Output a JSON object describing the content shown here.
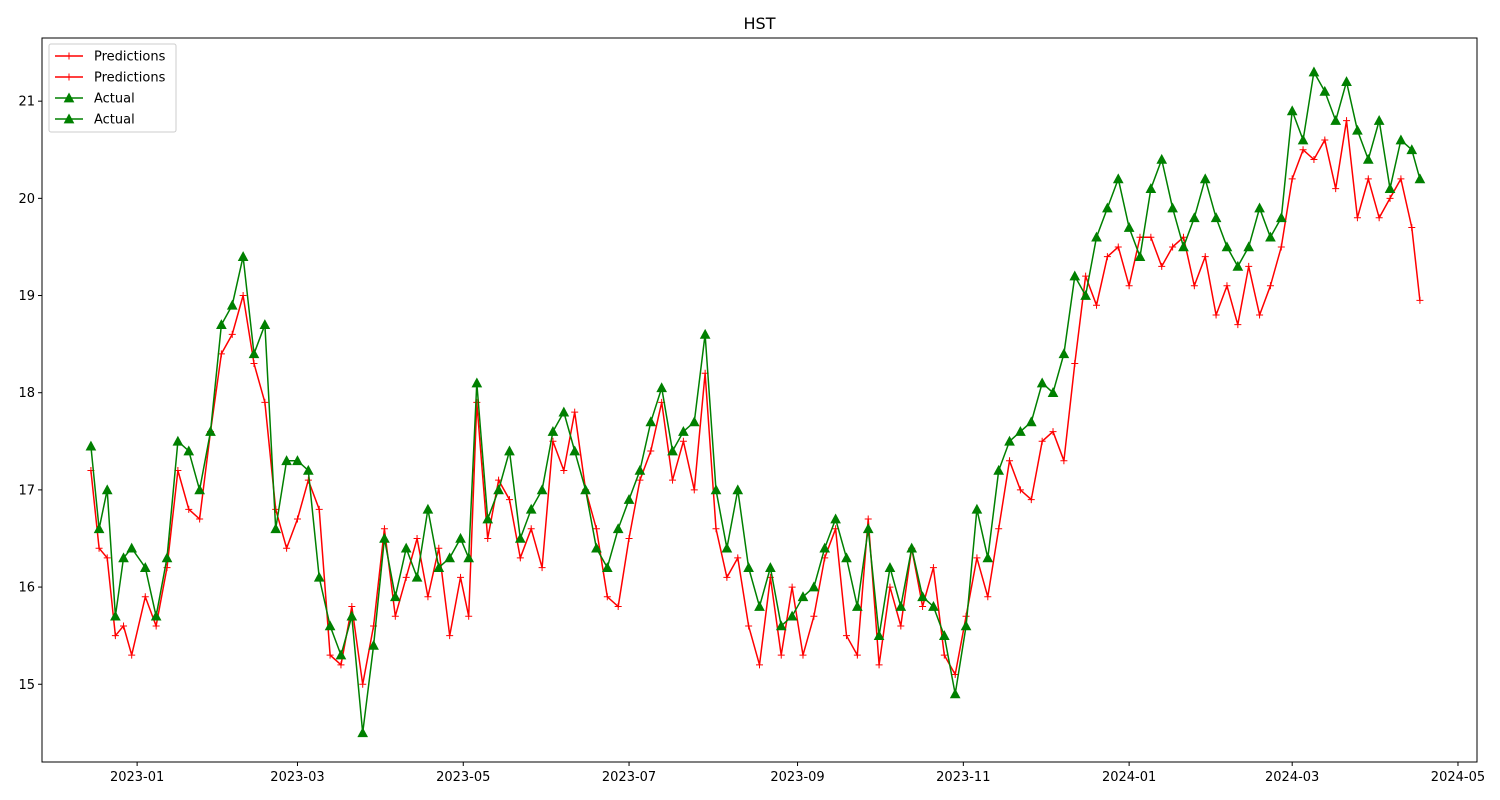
{
  "chart_data": {
    "type": "line",
    "title": "HST",
    "xlabel": "",
    "ylabel": "",
    "x_axis": {
      "kind": "date",
      "range": [
        "2022-11-27",
        "2024-05-08"
      ],
      "ticks": [
        "2023-01-01",
        "2023-03-01",
        "2023-05-01",
        "2023-07-01",
        "2023-09-01",
        "2023-11-01",
        "2024-01-01",
        "2024-03-01",
        "2024-05-01"
      ],
      "tick_labels": [
        "2023-01",
        "2023-03",
        "2023-05",
        "2023-07",
        "2023-09",
        "2023-11",
        "2024-01",
        "2024-03",
        "2024-05"
      ]
    },
    "y_axis": {
      "range": [
        14.2,
        21.65
      ],
      "ticks": [
        15,
        16,
        17,
        18,
        19,
        20,
        21
      ],
      "tick_labels": [
        "15",
        "16",
        "17",
        "18",
        "19",
        "20",
        "21"
      ]
    },
    "grid": false,
    "legend": {
      "position": "top-left",
      "entries": [
        {
          "label": "Predictions",
          "color": "#ff0000",
          "marker": "plus"
        },
        {
          "label": "Predictions",
          "color": "#ff0000",
          "marker": "plus"
        },
        {
          "label": "Actual",
          "color": "#008000",
          "marker": "triangle"
        },
        {
          "label": "Actual",
          "color": "#008000",
          "marker": "triangle"
        }
      ]
    },
    "series": [
      {
        "name": "Predictions",
        "color": "#ff0000",
        "marker": "plus",
        "x": [
          "2022-12-15",
          "2022-12-18",
          "2022-12-21",
          "2022-12-24",
          "2022-12-27",
          "2022-12-30",
          "2023-01-04",
          "2023-01-08",
          "2023-01-12",
          "2023-01-16",
          "2023-01-20",
          "2023-01-24",
          "2023-01-28",
          "2023-02-01",
          "2023-02-05",
          "2023-02-09",
          "2023-02-13",
          "2023-02-17",
          "2023-02-21",
          "2023-02-25",
          "2023-03-01",
          "2023-03-05",
          "2023-03-09",
          "2023-03-13",
          "2023-03-17",
          "2023-03-21",
          "2023-03-25",
          "2023-03-29",
          "2023-04-02",
          "2023-04-06",
          "2023-04-10",
          "2023-04-14",
          "2023-04-18",
          "2023-04-22",
          "2023-04-26",
          "2023-04-30",
          "2023-05-03",
          "2023-05-06",
          "2023-05-10",
          "2023-05-14",
          "2023-05-18",
          "2023-05-22",
          "2023-05-26",
          "2023-05-30",
          "2023-06-03",
          "2023-06-07",
          "2023-06-11",
          "2023-06-15",
          "2023-06-19",
          "2023-06-23",
          "2023-06-27",
          "2023-07-01",
          "2023-07-05",
          "2023-07-09",
          "2023-07-13",
          "2023-07-17",
          "2023-07-21",
          "2023-07-25",
          "2023-07-29",
          "2023-08-02",
          "2023-08-06",
          "2023-08-10",
          "2023-08-14",
          "2023-08-18",
          "2023-08-22",
          "2023-08-26",
          "2023-08-30",
          "2023-09-03",
          "2023-09-07",
          "2023-09-11",
          "2023-09-15",
          "2023-09-19",
          "2023-09-23",
          "2023-09-27",
          "2023-10-01",
          "2023-10-05",
          "2023-10-09",
          "2023-10-13",
          "2023-10-17",
          "2023-10-21",
          "2023-10-25",
          "2023-10-29",
          "2023-11-02",
          "2023-11-06",
          "2023-11-10",
          "2023-11-14",
          "2023-11-18",
          "2023-11-22",
          "2023-11-26",
          "2023-11-30",
          "2023-12-04",
          "2023-12-08",
          "2023-12-12",
          "2023-12-16",
          "2023-12-20",
          "2023-12-24",
          "2023-12-28",
          "2024-01-01",
          "2024-01-05",
          "2024-01-09",
          "2024-01-13",
          "2024-01-17",
          "2024-01-21",
          "2024-01-25",
          "2024-01-29",
          "2024-02-02",
          "2024-02-06",
          "2024-02-10",
          "2024-02-14",
          "2024-02-18",
          "2024-02-22",
          "2024-02-26",
          "2024-03-01",
          "2024-03-05",
          "2024-03-09",
          "2024-03-13",
          "2024-03-17",
          "2024-03-21",
          "2024-03-25",
          "2024-03-29",
          "2024-04-02",
          "2024-04-06",
          "2024-04-10",
          "2024-04-14",
          "2024-04-17"
        ],
        "y": [
          17.2,
          16.4,
          16.3,
          15.5,
          15.6,
          15.3,
          15.9,
          15.6,
          16.2,
          17.2,
          16.8,
          16.7,
          17.6,
          18.4,
          18.6,
          19.0,
          18.3,
          17.9,
          16.8,
          16.4,
          16.7,
          17.1,
          16.8,
          15.3,
          15.2,
          15.8,
          15.0,
          15.6,
          16.6,
          15.7,
          16.1,
          16.5,
          15.9,
          16.4,
          15.5,
          16.1,
          15.7,
          17.9,
          16.5,
          17.1,
          16.9,
          16.3,
          16.6,
          16.2,
          17.5,
          17.2,
          17.8,
          17.0,
          16.6,
          15.9,
          15.8,
          16.5,
          17.1,
          17.4,
          17.9,
          17.1,
          17.5,
          17.0,
          18.2,
          16.6,
          16.1,
          16.3,
          15.6,
          15.2,
          16.1,
          15.3,
          16.0,
          15.3,
          15.7,
          16.3,
          16.6,
          15.5,
          15.3,
          16.7,
          15.2,
          16.0,
          15.6,
          16.4,
          15.8,
          16.2,
          15.3,
          15.1,
          15.7,
          16.3,
          15.9,
          16.6,
          17.3,
          17.0,
          16.9,
          17.5,
          17.6,
          17.3,
          18.3,
          19.2,
          18.9,
          19.4,
          19.5,
          19.1,
          19.6,
          19.6,
          19.3,
          19.5,
          19.6,
          19.1,
          19.4,
          18.8,
          19.1,
          18.7,
          19.3,
          18.8,
          19.1,
          19.5,
          20.2,
          20.5,
          20.4,
          20.6,
          20.1,
          20.8,
          19.8,
          20.2,
          19.8,
          20.0,
          20.2,
          19.7,
          18.95
        ]
      },
      {
        "name": "Actual",
        "color": "#008000",
        "marker": "triangle",
        "x": [
          "2022-12-15",
          "2022-12-18",
          "2022-12-21",
          "2022-12-24",
          "2022-12-27",
          "2022-12-30",
          "2023-01-04",
          "2023-01-08",
          "2023-01-12",
          "2023-01-16",
          "2023-01-20",
          "2023-01-24",
          "2023-01-28",
          "2023-02-01",
          "2023-02-05",
          "2023-02-09",
          "2023-02-13",
          "2023-02-17",
          "2023-02-21",
          "2023-02-25",
          "2023-03-01",
          "2023-03-05",
          "2023-03-09",
          "2023-03-13",
          "2023-03-17",
          "2023-03-21",
          "2023-03-25",
          "2023-03-29",
          "2023-04-02",
          "2023-04-06",
          "2023-04-10",
          "2023-04-14",
          "2023-04-18",
          "2023-04-22",
          "2023-04-26",
          "2023-04-30",
          "2023-05-03",
          "2023-05-06",
          "2023-05-10",
          "2023-05-14",
          "2023-05-18",
          "2023-05-22",
          "2023-05-26",
          "2023-05-30",
          "2023-06-03",
          "2023-06-07",
          "2023-06-11",
          "2023-06-15",
          "2023-06-19",
          "2023-06-23",
          "2023-06-27",
          "2023-07-01",
          "2023-07-05",
          "2023-07-09",
          "2023-07-13",
          "2023-07-17",
          "2023-07-21",
          "2023-07-25",
          "2023-07-29",
          "2023-08-02",
          "2023-08-06",
          "2023-08-10",
          "2023-08-14",
          "2023-08-18",
          "2023-08-22",
          "2023-08-26",
          "2023-08-30",
          "2023-09-03",
          "2023-09-07",
          "2023-09-11",
          "2023-09-15",
          "2023-09-19",
          "2023-09-23",
          "2023-09-27",
          "2023-10-01",
          "2023-10-05",
          "2023-10-09",
          "2023-10-13",
          "2023-10-17",
          "2023-10-21",
          "2023-10-25",
          "2023-10-29",
          "2023-11-02",
          "2023-11-06",
          "2023-11-10",
          "2023-11-14",
          "2023-11-18",
          "2023-11-22",
          "2023-11-26",
          "2023-11-30",
          "2023-12-04",
          "2023-12-08",
          "2023-12-12",
          "2023-12-16",
          "2023-12-20",
          "2023-12-24",
          "2023-12-28",
          "2024-01-01",
          "2024-01-05",
          "2024-01-09",
          "2024-01-13",
          "2024-01-17",
          "2024-01-21",
          "2024-01-25",
          "2024-01-29",
          "2024-02-02",
          "2024-02-06",
          "2024-02-10",
          "2024-02-14",
          "2024-02-18",
          "2024-02-22",
          "2024-02-26",
          "2024-03-01",
          "2024-03-05",
          "2024-03-09",
          "2024-03-13",
          "2024-03-17",
          "2024-03-21",
          "2024-03-25",
          "2024-03-29",
          "2024-04-02",
          "2024-04-06",
          "2024-04-10",
          "2024-04-14",
          "2024-04-17"
        ],
        "y": [
          17.45,
          16.6,
          17.0,
          15.7,
          16.3,
          16.4,
          16.2,
          15.7,
          16.3,
          17.5,
          17.4,
          17.0,
          17.6,
          18.7,
          18.9,
          19.4,
          18.4,
          18.7,
          16.6,
          17.3,
          17.3,
          17.2,
          16.1,
          15.6,
          15.3,
          15.7,
          14.5,
          15.4,
          16.5,
          15.9,
          16.4,
          16.1,
          16.8,
          16.2,
          16.3,
          16.5,
          16.3,
          18.1,
          16.7,
          17.0,
          17.4,
          16.5,
          16.8,
          17.0,
          17.6,
          17.8,
          17.4,
          17.0,
          16.4,
          16.2,
          16.6,
          16.9,
          17.2,
          17.7,
          18.05,
          17.4,
          17.6,
          17.7,
          18.6,
          17.0,
          16.4,
          17.0,
          16.2,
          15.8,
          16.2,
          15.6,
          15.7,
          15.9,
          16.0,
          16.4,
          16.7,
          16.3,
          15.8,
          16.6,
          15.5,
          16.2,
          15.8,
          16.4,
          15.9,
          15.8,
          15.5,
          14.9,
          15.6,
          16.8,
          16.3,
          17.2,
          17.5,
          17.6,
          17.7,
          18.1,
          18.0,
          18.4,
          19.2,
          19.0,
          19.6,
          19.9,
          20.2,
          19.7,
          19.4,
          20.1,
          20.4,
          19.9,
          19.5,
          19.8,
          20.2,
          19.8,
          19.5,
          19.3,
          19.5,
          19.9,
          19.6,
          19.8,
          20.9,
          20.6,
          21.3,
          21.1,
          20.8,
          21.2,
          20.7,
          20.4,
          20.8,
          20.1,
          20.6,
          20.5,
          20.2
        ]
      }
    ]
  }
}
